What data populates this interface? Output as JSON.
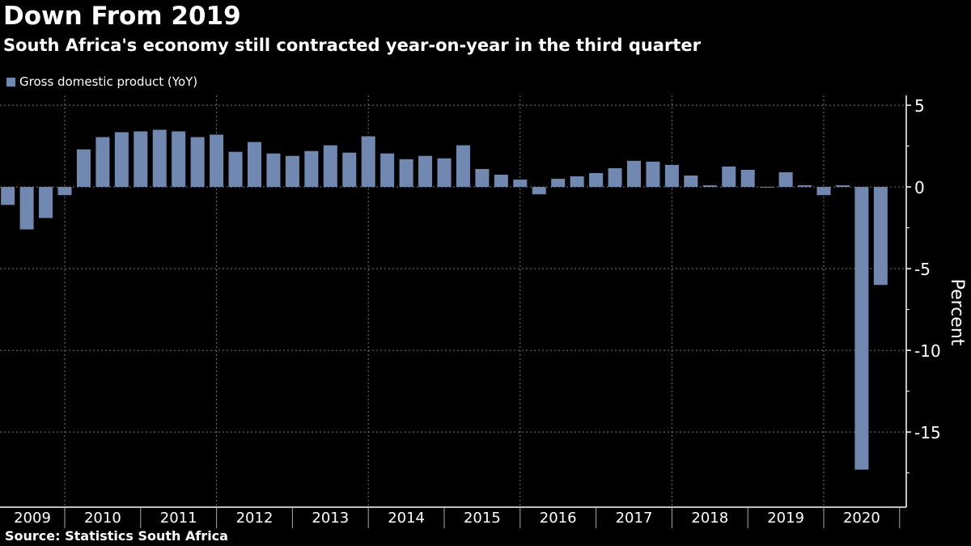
{
  "title": "Down From 2019",
  "subtitle": "South Africa's economy still contracted year-on-year in the third quarter",
  "source": "Source: Statistics South Africa",
  "colors": {
    "bar": "#7189b1",
    "background": "#000000",
    "grid": "#777777"
  },
  "chart_data": {
    "type": "bar",
    "title": "Down From 2019",
    "ylabel": "Percent",
    "ylim": [
      -19.5,
      5.6
    ],
    "yticks": [
      5,
      0,
      -5,
      -10,
      -15
    ],
    "grid": true,
    "legend_position": "top-left",
    "years": [
      "2009",
      "2010",
      "2011",
      "2012",
      "2013",
      "2014",
      "2015",
      "2016",
      "2017",
      "2018",
      "2019",
      "2020"
    ],
    "series": [
      {
        "name": "Gross domestic product (YoY)",
        "categories": [
          "2009Q1",
          "2009Q2",
          "2009Q3",
          "2009Q4",
          "2010Q1",
          "2010Q2",
          "2010Q3",
          "2010Q4",
          "2011Q1",
          "2011Q2",
          "2011Q3",
          "2011Q4",
          "2012Q1",
          "2012Q2",
          "2012Q3",
          "2012Q4",
          "2013Q1",
          "2013Q2",
          "2013Q3",
          "2013Q4",
          "2014Q1",
          "2014Q2",
          "2014Q3",
          "2014Q4",
          "2015Q1",
          "2015Q2",
          "2015Q3",
          "2015Q4",
          "2016Q1",
          "2016Q2",
          "2016Q3",
          "2016Q4",
          "2017Q1",
          "2017Q2",
          "2017Q3",
          "2017Q4",
          "2018Q1",
          "2018Q2",
          "2018Q3",
          "2018Q4",
          "2019Q1",
          "2019Q2",
          "2019Q3",
          "2019Q4",
          "2020Q1",
          "2020Q2",
          "2020Q3"
        ],
        "values": [
          -1.1,
          -2.6,
          -1.9,
          -0.5,
          2.3,
          3.05,
          3.35,
          3.4,
          3.5,
          3.4,
          3.05,
          3.2,
          2.15,
          2.75,
          2.05,
          1.9,
          2.2,
          2.55,
          2.1,
          3.1,
          2.05,
          1.7,
          1.9,
          1.75,
          2.55,
          1.1,
          0.75,
          0.45,
          -0.45,
          0.5,
          0.65,
          0.85,
          1.15,
          1.6,
          1.55,
          1.35,
          0.7,
          0.1,
          1.25,
          1.05,
          0.0,
          0.9,
          0.1,
          -0.5,
          0.1,
          -17.3,
          -6.0
        ]
      }
    ]
  }
}
